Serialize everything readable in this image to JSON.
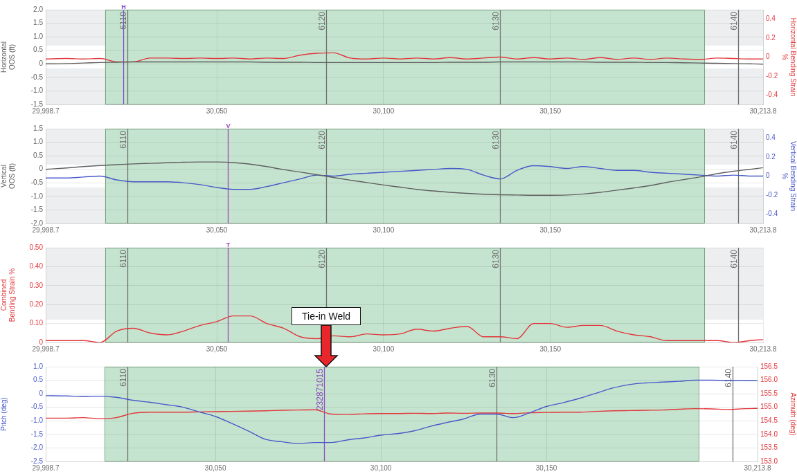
{
  "chart_data": [
    {
      "type": "line",
      "ylabel": "Horizontal OOS (ft)",
      "y2label": "Horizontal Bending Strain %",
      "x": [
        29998.7,
        30005,
        30010,
        30015,
        30020,
        30025,
        30030,
        30035,
        30040,
        30045,
        30050,
        30055,
        30060,
        30065,
        30070,
        30075,
        30080,
        30085,
        30090,
        30095,
        30100,
        30105,
        30110,
        30115,
        30120,
        30125,
        30130,
        30135,
        30140,
        30145,
        30150,
        30155,
        30160,
        30165,
        30170,
        30175,
        30180,
        30185,
        30190,
        30195,
        30200,
        30205,
        30210,
        30213.8
      ],
      "series": [
        {
          "color": "#5f5f5f",
          "values": [
            0.0,
            0.01,
            0.03,
            0.05,
            0.06,
            0.07,
            0.07,
            0.07,
            0.07,
            0.07,
            0.07,
            0.07,
            0.07,
            0.06,
            0.06,
            0.06,
            0.05,
            0.05,
            0.05,
            0.05,
            0.05,
            0.05,
            0.05,
            0.05,
            0.06,
            0.06,
            0.06,
            0.07,
            0.07,
            0.07,
            0.07,
            0.07,
            0.07,
            0.06,
            0.06,
            0.06,
            0.05,
            0.05,
            0.04,
            0.03,
            0.02,
            0.01,
            0.0,
            -0.01
          ]
        },
        {
          "color": "#e2363b",
          "axis": "y2",
          "values": [
            -0.02,
            -0.015,
            -0.02,
            -0.015,
            -0.05,
            -0.05,
            -0.01,
            -0.01,
            -0.015,
            -0.01,
            -0.015,
            -0.01,
            -0.02,
            -0.01,
            -0.015,
            0.02,
            0.04,
            0.045,
            -0.01,
            -0.02,
            -0.01,
            -0.02,
            -0.01,
            -0.02,
            -0.005,
            -0.02,
            -0.01,
            0.0,
            -0.02,
            -0.005,
            -0.02,
            -0.01,
            -0.025,
            -0.005,
            -0.025,
            -0.01,
            -0.025,
            -0.01,
            -0.02,
            -0.025,
            -0.01,
            -0.015,
            -0.02,
            -0.02
          ]
        }
      ],
      "xlim": [
        29998.7,
        30213.8
      ],
      "xticks": [
        {
          "value": 29998.7,
          "label": "29,998.7"
        },
        {
          "value": 30050,
          "label": "30,050"
        },
        {
          "value": 30100,
          "label": "30,100"
        },
        {
          "value": 30150,
          "label": "30,150"
        },
        {
          "value": 30213.8,
          "label": "30,213.8"
        }
      ],
      "ylim": [
        -1.5,
        2
      ],
      "yticks": [
        -1.5,
        {
          "value": -1,
          "label": "-1.0"
        },
        -0.5,
        0,
        0.5,
        {
          "value": 1,
          "label": "1.0"
        },
        1.5,
        {
          "value": 2,
          "label": "2.0"
        }
      ],
      "y2lim": [
        -0.5,
        0.5
      ],
      "y2ticks": [
        -0.4,
        -0.2,
        0,
        0.2,
        0.4
      ],
      "bands": [
        {
          "axis": "y2",
          "from": 0.12,
          "to": 0.5,
          "color": "#eceef0"
        },
        {
          "axis": "y2",
          "from": -0.5,
          "to": -0.12,
          "color": "#eceef0"
        },
        {
          "axis": "x",
          "from": 30016.5,
          "to": 30196.2,
          "color": "#c5e4cf"
        }
      ],
      "ref_lines": [
        {
          "axis": "x",
          "value": 30022,
          "label": "H",
          "color": "#7b4fd0"
        },
        {
          "axis": "x",
          "value": 30023.3,
          "color": "#707070"
        },
        {
          "axis": "x",
          "value": 30082.7,
          "color": "#707070"
        },
        {
          "axis": "x",
          "value": 30134.9,
          "color": "#707070"
        },
        {
          "axis": "x",
          "value": 30206.3,
          "color": "#707070"
        }
      ],
      "annotations": [
        {
          "text": "6110",
          "x": 30023.3
        },
        {
          "text": "6120",
          "x": 30082.7
        },
        {
          "text": "6130",
          "x": 30134.9
        },
        {
          "text": "6140",
          "x": 30206.3
        }
      ],
      "grid": true
    },
    {
      "type": "line",
      "ylabel": "Vertical OOS (ft)",
      "y2label": "Vertical Bending Strain %",
      "x": [
        29998.7,
        30005,
        30010,
        30015,
        30020,
        30025,
        30030,
        30035,
        30040,
        30045,
        30050,
        30055,
        30060,
        30065,
        30070,
        30075,
        30080,
        30085,
        30090,
        30095,
        30100,
        30105,
        30110,
        30115,
        30120,
        30125,
        30130,
        30135,
        30140,
        30145,
        30150,
        30155,
        30160,
        30165,
        30170,
        30175,
        30180,
        30185,
        30190,
        30195,
        30200,
        30205,
        30210,
        30213.8
      ],
      "series": [
        {
          "color": "#5f5f5f",
          "values": [
            0.0,
            0.05,
            0.1,
            0.14,
            0.17,
            0.2,
            0.22,
            0.24,
            0.26,
            0.27,
            0.27,
            0.25,
            0.19,
            0.1,
            -0.01,
            -0.1,
            -0.2,
            -0.3,
            -0.4,
            -0.49,
            -0.58,
            -0.66,
            -0.74,
            -0.8,
            -0.85,
            -0.89,
            -0.92,
            -0.94,
            -0.95,
            -0.96,
            -0.96,
            -0.95,
            -0.91,
            -0.85,
            -0.77,
            -0.69,
            -0.6,
            -0.48,
            -0.38,
            -0.28,
            -0.16,
            -0.07,
            0.0,
            0.06
          ]
        },
        {
          "color": "#4759c9",
          "axis": "y2",
          "values": [
            -0.02,
            -0.02,
            -0.01,
            0.0,
            -0.04,
            -0.06,
            -0.06,
            -0.06,
            -0.07,
            -0.09,
            -0.12,
            -0.14,
            -0.14,
            -0.11,
            -0.07,
            -0.03,
            0.01,
            0.0,
            0.02,
            0.03,
            0.04,
            0.05,
            0.06,
            0.07,
            0.08,
            0.07,
            0.01,
            -0.03,
            0.06,
            0.11,
            0.1,
            0.08,
            0.1,
            0.08,
            0.06,
            0.06,
            0.04,
            0.03,
            0.02,
            0.01,
            0.0,
            0.01,
            0.0,
            0.0
          ]
        }
      ],
      "xlim": [
        29998.7,
        30213.8
      ],
      "xticks": [
        {
          "value": 29998.7,
          "label": "29,998.7"
        },
        {
          "value": 30050,
          "label": "30,050"
        },
        {
          "value": 30100,
          "label": "30,100"
        },
        {
          "value": 30150,
          "label": "30,150"
        },
        {
          "value": 30213.8,
          "label": "30,213.8"
        }
      ],
      "ylim": [
        -2,
        1.5
      ],
      "yticks": [
        {
          "value": -2,
          "label": "-2.0"
        },
        -1.5,
        {
          "value": -1,
          "label": "-1.0"
        },
        -0.5,
        0,
        0.5,
        {
          "value": 1,
          "label": "1.0"
        },
        1.5
      ],
      "y2lim": [
        -0.5,
        0.5
      ],
      "y2ticks": [
        -0.4,
        -0.2,
        0,
        0.2,
        0.4
      ],
      "bands": [
        {
          "axis": "y2",
          "from": 0.12,
          "to": 0.5,
          "color": "#eceef0"
        },
        {
          "axis": "y2",
          "from": -0.5,
          "to": -0.12,
          "color": "#eceef0"
        },
        {
          "axis": "x",
          "from": 30016.5,
          "to": 30196.2,
          "color": "#c5e4cf"
        }
      ],
      "ref_lines": [
        {
          "axis": "x",
          "value": 30023.3,
          "color": "#707070"
        },
        {
          "axis": "x",
          "value": 30053.4,
          "label": "V",
          "color": "#a040b8"
        },
        {
          "axis": "x",
          "value": 30082.7,
          "color": "#707070"
        },
        {
          "axis": "x",
          "value": 30134.9,
          "color": "#707070"
        },
        {
          "axis": "x",
          "value": 30206.3,
          "color": "#707070"
        }
      ],
      "annotations": [
        {
          "text": "6110",
          "x": 30023.3
        },
        {
          "text": "6120",
          "x": 30082.7
        },
        {
          "text": "6130",
          "x": 30134.9
        },
        {
          "text": "6140",
          "x": 30206.3
        }
      ],
      "grid": true
    },
    {
      "type": "line",
      "ylabel": "Combined Bending Strain %",
      "x": [
        29998.7,
        30005,
        30010,
        30015,
        30020,
        30025,
        30030,
        30035,
        30040,
        30045,
        30050,
        30055,
        30060,
        30065,
        30070,
        30075,
        30080,
        30085,
        30090,
        30095,
        30100,
        30105,
        30110,
        30115,
        30120,
        30125,
        30130,
        30135,
        30140,
        30145,
        30150,
        30155,
        30160,
        30165,
        30170,
        30175,
        30180,
        30185,
        30190,
        30195,
        30200,
        30205,
        30210,
        30213.8
      ],
      "series": [
        {
          "color": "#e2363b",
          "values": [
            0.01,
            0.01,
            0.01,
            0.0,
            0.06,
            0.075,
            0.05,
            0.04,
            0.06,
            0.09,
            0.11,
            0.14,
            0.14,
            0.1,
            0.075,
            0.03,
            0.02,
            0.035,
            0.03,
            0.045,
            0.04,
            0.045,
            0.07,
            0.06,
            0.075,
            0.085,
            0.03,
            0.03,
            0.02,
            0.1,
            0.1,
            0.08,
            0.09,
            0.09,
            0.06,
            0.04,
            0.03,
            0.01,
            0.01,
            0.01,
            0.01,
            0.0,
            0.01,
            0.015
          ]
        }
      ],
      "xlim": [
        29998.7,
        30213.8
      ],
      "xticks": [
        {
          "value": 29998.7,
          "label": "29,998.7"
        },
        {
          "value": 30050,
          "label": "30,050"
        },
        {
          "value": 30100,
          "label": "30,100"
        },
        {
          "value": 30150,
          "label": "30,150"
        },
        {
          "value": 30213.8,
          "label": "30,213.8"
        }
      ],
      "ylim": [
        0,
        0.5
      ],
      "yticks": [
        0,
        {
          "value": 0.1,
          "label": "0.10"
        },
        {
          "value": 0.2,
          "label": "0.20"
        },
        {
          "value": 0.3,
          "label": "0.30"
        },
        {
          "value": 0.4,
          "label": "0.40"
        },
        {
          "value": 0.5,
          "label": "0.50"
        }
      ],
      "bands": [
        {
          "axis": "y",
          "from": 0.12,
          "to": 0.5,
          "color": "#eceef0"
        },
        {
          "axis": "x",
          "from": 30016.5,
          "to": 30196.2,
          "color": "#c5e4cf"
        }
      ],
      "ref_lines": [
        {
          "axis": "x",
          "value": 30023.3,
          "color": "#707070"
        },
        {
          "axis": "x",
          "value": 30053.4,
          "label": "T",
          "color": "#a040b8"
        },
        {
          "axis": "x",
          "value": 30082.7,
          "color": "#707070"
        },
        {
          "axis": "x",
          "value": 30134.9,
          "color": "#707070"
        },
        {
          "axis": "x",
          "value": 30206.3,
          "color": "#707070"
        }
      ],
      "annotations": [
        {
          "text": "6110",
          "x": 30023.3
        },
        {
          "text": "6120",
          "x": 30082.7
        },
        {
          "text": "6130",
          "x": 30134.9
        },
        {
          "text": "6140",
          "x": 30206.3
        },
        {
          "text": "Tie-in Weld",
          "x": 30082.8
        }
      ],
      "grid": true
    },
    {
      "type": "line",
      "ylabel": "Pitch (deg)",
      "y2label": "Azimuth (deg)",
      "x": [
        29998.7,
        30005,
        30010,
        30015,
        30020,
        30025,
        30030,
        30035,
        30040,
        30045,
        30050,
        30055,
        30060,
        30065,
        30070,
        30075,
        30080,
        30085,
        30090,
        30095,
        30100,
        30105,
        30110,
        30115,
        30120,
        30125,
        30130,
        30135,
        30140,
        30145,
        30150,
        30155,
        30160,
        30165,
        30170,
        30175,
        30180,
        30185,
        30190,
        30195,
        30200,
        30205,
        30210,
        30213.8
      ],
      "series": [
        {
          "color": "#4759c9",
          "values": [
            -0.07,
            -0.08,
            -0.1,
            -0.09,
            -0.13,
            -0.24,
            -0.31,
            -0.4,
            -0.49,
            -0.67,
            -0.84,
            -1.1,
            -1.38,
            -1.68,
            -1.77,
            -1.84,
            -1.8,
            -1.8,
            -1.7,
            -1.63,
            -1.53,
            -1.47,
            -1.37,
            -1.2,
            -1.06,
            -0.93,
            -0.75,
            -0.75,
            -0.88,
            -0.7,
            -0.47,
            -0.33,
            -0.17,
            0.02,
            0.21,
            0.34,
            0.4,
            0.43,
            0.46,
            0.5,
            0.5,
            0.49,
            0.49,
            0.48
          ]
        },
        {
          "color": "#e2363b",
          "axis": "y2",
          "values": [
            154.6,
            154.6,
            154.62,
            154.58,
            154.62,
            154.78,
            154.82,
            154.82,
            154.82,
            154.83,
            154.84,
            154.85,
            154.86,
            154.87,
            154.89,
            154.9,
            154.91,
            154.75,
            154.74,
            154.76,
            154.77,
            154.77,
            154.78,
            154.77,
            154.79,
            154.78,
            154.79,
            154.79,
            154.77,
            154.8,
            154.81,
            154.82,
            154.82,
            154.85,
            154.87,
            154.88,
            154.89,
            154.9,
            154.93,
            154.95,
            154.94,
            154.92,
            154.95,
            154.96
          ]
        }
      ],
      "xlim": [
        29998.7,
        30213.8
      ],
      "xticks": [
        {
          "value": 29998.7,
          "label": "29,998.7"
        },
        {
          "value": 30050,
          "label": "30,050"
        },
        {
          "value": 30100,
          "label": "30,100"
        },
        {
          "value": 30150,
          "label": "30,150"
        },
        {
          "value": 30213.8,
          "label": "30,213.8"
        }
      ],
      "ylim": [
        -2.5,
        1
      ],
      "yticks": [
        -2.5,
        {
          "value": -2,
          "label": "-2.0"
        },
        -1.5,
        {
          "value": -1,
          "label": "-1.0"
        },
        -0.5,
        0,
        0.5,
        {
          "value": 1,
          "label": "1.0"
        }
      ],
      "y2lim": [
        153,
        156.5
      ],
      "y2ticks": [
        {
          "value": 153,
          "label": "153.0"
        },
        153.5,
        {
          "value": 154,
          "label": "154.0"
        },
        154.5,
        {
          "value": 155,
          "label": "155.0"
        },
        155.5,
        {
          "value": 156,
          "label": "156.0"
        },
        156.5
      ],
      "bands": [
        {
          "axis": "x",
          "from": 30016.5,
          "to": 30196.2,
          "color": "#c5e4cf"
        }
      ],
      "ref_lines": [
        {
          "axis": "x",
          "value": 30023.3,
          "color": "#707070"
        },
        {
          "axis": "x",
          "value": 30082.8,
          "color": "#8e4bbf"
        },
        {
          "axis": "x",
          "value": 30134.9,
          "color": "#707070"
        },
        {
          "axis": "x",
          "value": 30206.3,
          "color": "#707070"
        }
      ],
      "annotations": [
        {
          "text": "6110",
          "x": 30023.3
        },
        {
          "text": "232871015",
          "x": 30082.8
        },
        {
          "text": "6130",
          "x": 30134.9
        },
        {
          "text": "6140",
          "x": 30206.3
        }
      ],
      "grid": true
    }
  ]
}
